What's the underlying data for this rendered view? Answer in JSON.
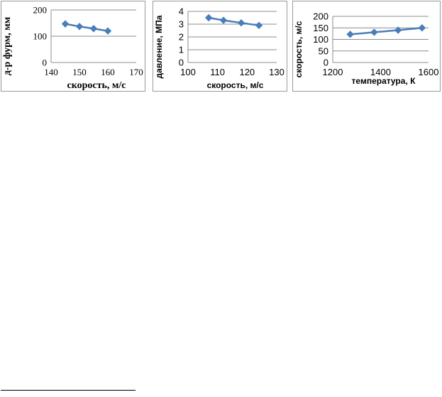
{
  "colors": {
    "series": "#4a7ebb",
    "grid": "#8c8c8c",
    "axis_text": "#000000"
  },
  "chart_data": [
    {
      "type": "line",
      "title": "",
      "xlabel": "скорость, м/с",
      "ylabel": "д-р фурм, мм",
      "xlim": [
        140,
        170
      ],
      "ylim": [
        0,
        200
      ],
      "xticks": [
        "140",
        "150",
        "160",
        "170"
      ],
      "yticks": [
        "0",
        "100",
        "200"
      ],
      "label_font": "serif",
      "x": [
        145,
        150,
        155,
        160
      ],
      "y": [
        147,
        137,
        129,
        120
      ],
      "grid": true,
      "legend": "none"
    },
    {
      "type": "line",
      "title": "",
      "xlabel": "скорость, м/с",
      "ylabel": "давление, МПа",
      "xlim": [
        100,
        130
      ],
      "ylim": [
        0,
        4
      ],
      "xticks": [
        "100",
        "110",
        "120",
        "130"
      ],
      "yticks": [
        "0",
        "1",
        "2",
        "3",
        "4"
      ],
      "label_font": "sans",
      "x": [
        107,
        112,
        118,
        124
      ],
      "y": [
        3.5,
        3.3,
        3.1,
        2.9
      ],
      "grid": true,
      "legend": "none"
    },
    {
      "type": "line",
      "title": "",
      "xlabel": "температура, К",
      "ylabel": "скорость, м/с",
      "xlim": [
        1200,
        1600
      ],
      "ylim": [
        0,
        200
      ],
      "xticks": [
        "1200",
        "1400",
        "1600"
      ],
      "yticks": [
        "0",
        "50",
        "100",
        "150",
        "200"
      ],
      "label_font": "sans",
      "x": [
        1273,
        1373,
        1473,
        1573
      ],
      "y": [
        122,
        131,
        140,
        150
      ],
      "grid": true,
      "legend": "none"
    }
  ]
}
